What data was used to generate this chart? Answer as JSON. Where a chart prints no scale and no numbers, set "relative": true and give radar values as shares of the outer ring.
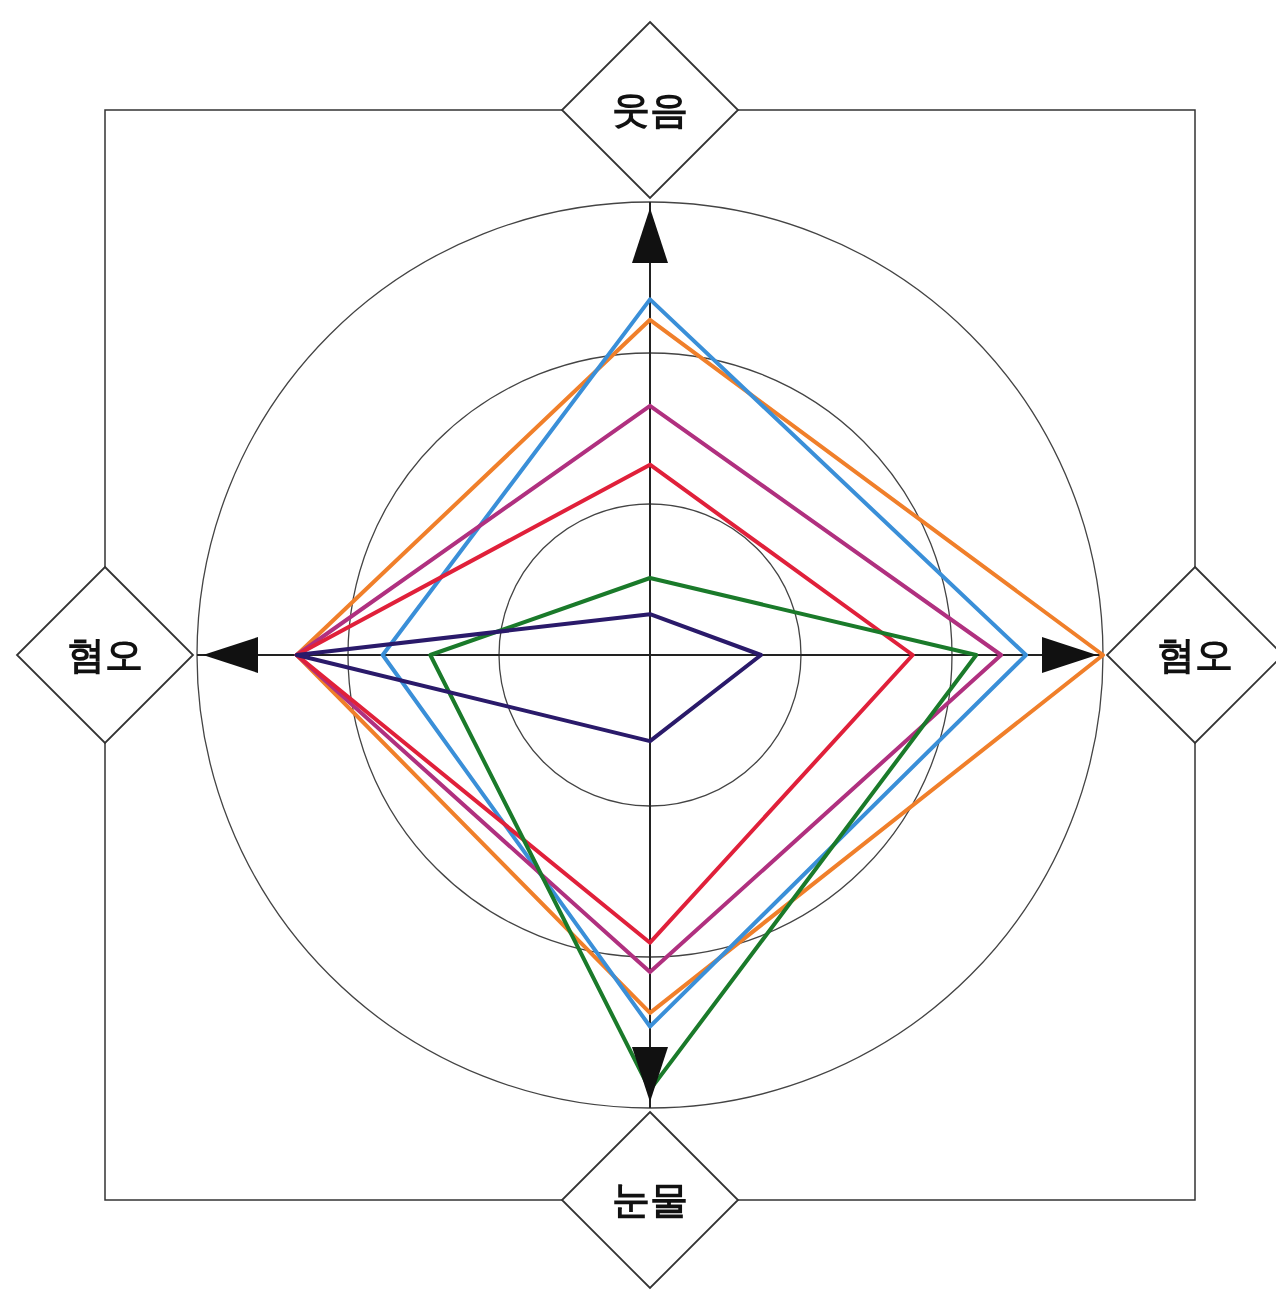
{
  "chart_data": {
    "type": "radar",
    "relative": true,
    "grid": true,
    "categories": [
      "웃음",
      "혐오",
      "눈물",
      "혐오"
    ],
    "series": [
      {
        "color": "#f07f2a",
        "values": [
          0.74,
          1.0,
          0.79,
          0.78
        ]
      },
      {
        "color": "#3a8fd8",
        "values": [
          0.785,
          0.83,
          0.82,
          0.59
        ]
      },
      {
        "color": "#b0307f",
        "values": [
          0.55,
          0.775,
          0.7,
          0.78
        ]
      },
      {
        "color": "#e0203a",
        "values": [
          0.42,
          0.58,
          0.635,
          0.78
        ]
      },
      {
        "color": "#1a7a2a",
        "values": [
          0.17,
          0.72,
          0.96,
          0.485
        ]
      },
      {
        "color": "#2a1a6a",
        "values": [
          0.09,
          0.245,
          0.19,
          0.78
        ]
      }
    ]
  }
}
